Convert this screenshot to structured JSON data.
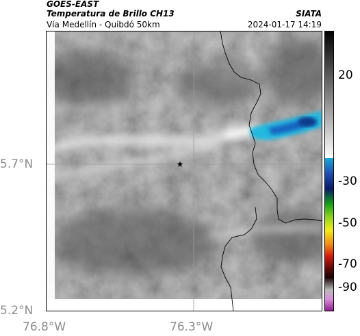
{
  "header": {
    "satellite": "GOES-EAST",
    "product": "Temperatura de Brillo CH13",
    "region": "Vía Medellín - Quibdó 50km",
    "organization": "SIATA",
    "datetime": "2024-01-17 14:19"
  },
  "axes": {
    "y_labels": [
      "5.7°N",
      "5.2°N"
    ],
    "x_labels": [
      "76.8°W",
      "76.3°W"
    ]
  },
  "colorbar": {
    "ticks": [
      "20",
      "-30",
      "-50",
      "-70",
      "-90"
    ]
  },
  "map": {
    "marker": "star-icon",
    "colors": {
      "cold_cloud_cyan": "#22b8e0",
      "cold_cloud_core": "#0a3a8a",
      "background_gray": "#7a7a7a"
    }
  }
}
